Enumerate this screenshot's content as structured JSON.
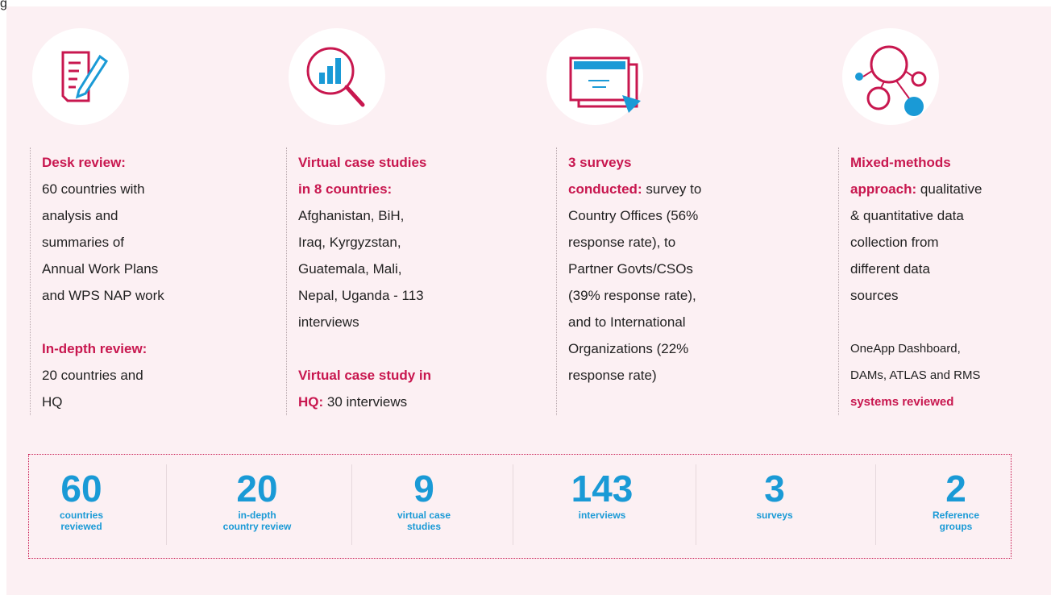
{
  "corner_text": "g",
  "columns": [
    {
      "paragraphs": [
        {
          "lines": [
            [
              {
                "text": "Desk review:",
                "bold": true
              }
            ],
            [
              {
                "text": "60 countries with",
                "bold": false
              }
            ],
            [
              {
                "text": "analysis and",
                "bold": false
              }
            ],
            [
              {
                "text": "summaries of",
                "bold": false
              }
            ],
            [
              {
                "text": "Annual Work Plans",
                "bold": false
              }
            ],
            [
              {
                "text": "and WPS NAP work",
                "bold": false
              }
            ]
          ]
        },
        {
          "lines": [
            [
              {
                "text": "In-depth review:",
                "bold": true
              }
            ],
            [
              {
                "text": "20 countries and",
                "bold": false
              }
            ],
            [
              {
                "text": "HQ",
                "bold": false
              }
            ]
          ]
        }
      ]
    },
    {
      "paragraphs": [
        {
          "lines": [
            [
              {
                "text": "Virtual case studies",
                "bold": true
              }
            ],
            [
              {
                "text": "in 8 countries:",
                "bold": true
              }
            ],
            [
              {
                "text": "Afghanistan, BiH,",
                "bold": false
              }
            ],
            [
              {
                "text": "Iraq, Kyrgyzstan,",
                "bold": false
              }
            ],
            [
              {
                "text": "Guatemala, Mali,",
                "bold": false
              }
            ],
            [
              {
                "text": "Nepal, Uganda - 113",
                "bold": false
              }
            ],
            [
              {
                "text": "interviews",
                "bold": false
              }
            ]
          ]
        },
        {
          "lines": [
            [
              {
                "text": "Virtual case study in",
                "bold": true
              }
            ],
            [
              {
                "text": "HQ:",
                "bold": true
              },
              {
                "text": " 30 interviews",
                "bold": false
              }
            ]
          ]
        }
      ]
    },
    {
      "paragraphs": [
        {
          "lines": [
            [
              {
                "text": "3 surveys",
                "bold": true
              }
            ],
            [
              {
                "text": "conducted:",
                "bold": true
              },
              {
                "text": " survey to",
                "bold": false
              }
            ],
            [
              {
                "text": "Country Offices (56%",
                "bold": false
              }
            ],
            [
              {
                "text": "response rate), to",
                "bold": false
              }
            ],
            [
              {
                "text": "Partner Govts/CSOs",
                "bold": false
              }
            ],
            [
              {
                "text": "(39% response rate),",
                "bold": false
              }
            ],
            [
              {
                "text": "and to International",
                "bold": false
              }
            ],
            [
              {
                "text": "Organizations (22%",
                "bold": false
              }
            ],
            [
              {
                "text": "response rate)",
                "bold": false
              }
            ]
          ]
        }
      ]
    },
    {
      "paragraphs": [
        {
          "lines": [
            [
              {
                "text": "Mixed-methods",
                "bold": true
              }
            ],
            [
              {
                "text": "approach:",
                "bold": true
              },
              {
                "text": " qualitative",
                "bold": false
              }
            ],
            [
              {
                "text": "& quantitative data",
                "bold": false
              }
            ],
            [
              {
                "text": "collection from",
                "bold": false
              }
            ],
            [
              {
                "text": "different data",
                "bold": false
              }
            ],
            [
              {
                "text": "sources",
                "bold": false
              }
            ]
          ]
        },
        {
          "lines": [
            [
              {
                "text": "OneApp Dashboard,",
                "bold": false
              }
            ],
            [
              {
                "text": "DAMs, ATLAS and RMS",
                "bold": false
              }
            ],
            [
              {
                "text": "systems reviewed",
                "bold": true
              }
            ]
          ],
          "small": true
        }
      ]
    }
  ],
  "stats": [
    {
      "number": 60,
      "label": [
        "countries",
        "reviewed"
      ]
    },
    {
      "number": 20,
      "label": [
        "in-depth",
        "country review"
      ]
    },
    {
      "number": 9,
      "label": [
        "virtual case",
        "studies"
      ]
    },
    {
      "number": 143,
      "label": [
        "interviews"
      ]
    },
    {
      "number": 3,
      "label": [
        "surveys"
      ]
    },
    {
      "number": 2,
      "label": [
        "Reference",
        "groups"
      ]
    }
  ]
}
